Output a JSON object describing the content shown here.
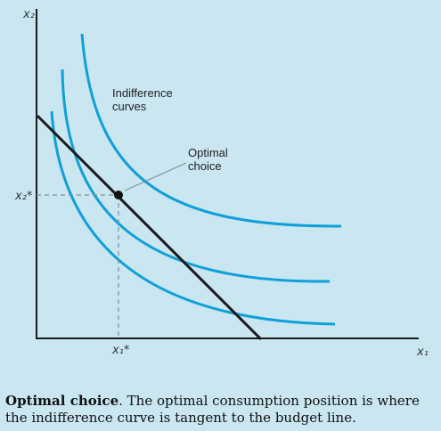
{
  "diagram": {
    "y_axis_label": "x₂",
    "x_axis_label": "x₁",
    "y_star_label": "x₂*",
    "x_star_label": "x₁*",
    "curves_label_line1": "Indifference",
    "curves_label_line2": "curves",
    "optimal_label_line1": "Optimal",
    "optimal_label_line2": "choice",
    "colors": {
      "curve": "#0fa0d8",
      "budget": "#1a1a1a",
      "axis": "#1a1a1a",
      "dashed": "#7f8f96",
      "background": "#c9e6f1"
    }
  },
  "caption": {
    "title": "Optimal choice",
    "text": ". The optimal consumption position is where the indifference curve is tangent to the budget line."
  }
}
